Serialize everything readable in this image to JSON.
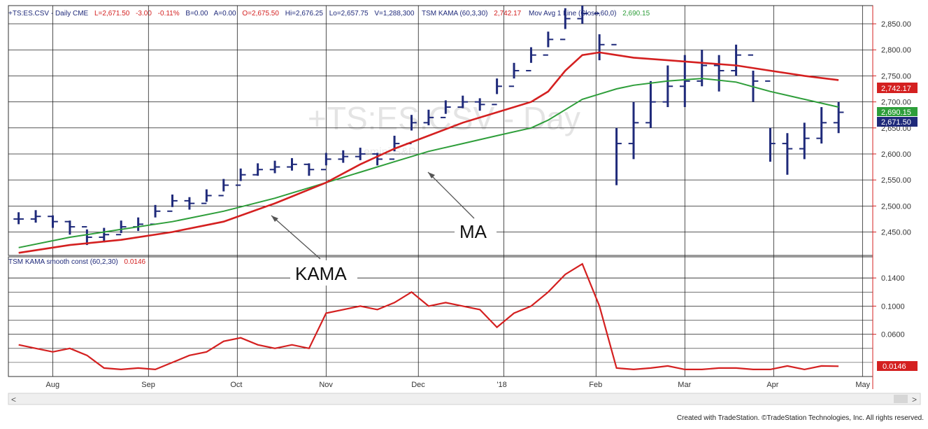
{
  "header": {
    "symbol": "+TS:ES.CSV - Daily  CME",
    "last": "L=2,671.50",
    "change": "-3.00",
    "change_pct": "-0.11%",
    "bid": "B=0.00",
    "ask": "A=0.00",
    "open": "O=2,675.50",
    "high": "Hi=2,676.25",
    "low": "Lo=2,657.75",
    "volume": "V=1,288,300",
    "kama_name": "TSM KAMA (60,3,30)",
    "kama_value": "2,742.17",
    "ma_name": "Mov Avg 1 Line (Close,60,0)",
    "ma_value": "2,690.15"
  },
  "lower_header": {
    "name": "TSM KAMA smooth const (60,2,30)",
    "value": "0.0146"
  },
  "watermark": {
    "line1": "+TS:ES.CSV - Day",
    "line2": "emini S&P"
  },
  "annotations": {
    "ma": "MA",
    "kama": "KAMA"
  },
  "price_tags": {
    "kama": "2,742.17",
    "ma": "2,690.15",
    "last": "2,671.50",
    "sc": "0.0146"
  },
  "footer": {
    "credit": "Created with TradeStation. ©TradeStation Technologies, Inc. All rights reserved."
  },
  "scrollbar": {
    "left": "<",
    "right": ">"
  },
  "colors": {
    "price": "#1f2a7a",
    "kama": "#d42020",
    "ma": "#2e9e3a",
    "grid": "#222222",
    "tag_kama": "#d42020",
    "tag_ma": "#2e9e3a",
    "tag_last": "#1f2a7a"
  },
  "chart_data": {
    "type": "line",
    "upper": {
      "y_ticks": [
        "2,850.00",
        "2,800.00",
        "2,750.00",
        "2,700.00",
        "2,650.00",
        "2,600.00",
        "2,550.00",
        "2,500.00",
        "2,450.00"
      ],
      "y_tick_values": [
        2850,
        2800,
        2750,
        2700,
        2650,
        2600,
        2550,
        2500,
        2450
      ],
      "ylim": [
        2405,
        2885
      ],
      "series": [
        {
          "name": "+TS:ES.CSV - Daily",
          "kind": "ohlc",
          "x": [
            0,
            5,
            10,
            15,
            20,
            25,
            30,
            35,
            40,
            45,
            50,
            55,
            60,
            65,
            70,
            75,
            80,
            85,
            90,
            95,
            100,
            105,
            110,
            115,
            120,
            125,
            130,
            135,
            140,
            145,
            150,
            155,
            160,
            165,
            170,
            175,
            180,
            185,
            190,
            195,
            200,
            205,
            210,
            215,
            220,
            225,
            230,
            235,
            240
          ],
          "close": [
            2475,
            2480,
            2470,
            2460,
            2440,
            2445,
            2460,
            2465,
            2490,
            2510,
            2505,
            2520,
            2540,
            2560,
            2570,
            2575,
            2580,
            2570,
            2590,
            2595,
            2600,
            2590,
            2620,
            2660,
            2670,
            2690,
            2700,
            2695,
            2730,
            2760,
            2790,
            2820,
            2860,
            2870,
            2810,
            2620,
            2660,
            2700,
            2730,
            2740,
            2770,
            2760,
            2790,
            2740,
            2620,
            2610,
            2630,
            2660,
            2680
          ],
          "high": [
            2488,
            2492,
            2482,
            2472,
            2455,
            2458,
            2472,
            2478,
            2502,
            2522,
            2517,
            2532,
            2552,
            2572,
            2582,
            2587,
            2592,
            2582,
            2602,
            2607,
            2612,
            2602,
            2635,
            2675,
            2685,
            2703,
            2712,
            2707,
            2745,
            2775,
            2805,
            2835,
            2880,
            2885,
            2830,
            2650,
            2700,
            2740,
            2770,
            2790,
            2800,
            2790,
            2810,
            2760,
            2650,
            2640,
            2660,
            2690,
            2700
          ],
          "low": [
            2465,
            2468,
            2458,
            2445,
            2425,
            2430,
            2448,
            2452,
            2478,
            2498,
            2493,
            2508,
            2528,
            2548,
            2558,
            2563,
            2568,
            2558,
            2578,
            2583,
            2588,
            2578,
            2605,
            2645,
            2655,
            2677,
            2688,
            2683,
            2715,
            2745,
            2775,
            2805,
            2840,
            2850,
            2780,
            2540,
            2590,
            2650,
            2690,
            2690,
            2730,
            2720,
            2750,
            2700,
            2585,
            2560,
            2590,
            2620,
            2640
          ]
        },
        {
          "name": "TSM KAMA (60,3,30)",
          "x": [
            0,
            15,
            30,
            45,
            60,
            75,
            90,
            100,
            110,
            120,
            130,
            140,
            150,
            155,
            160,
            165,
            170,
            175,
            180,
            190,
            200,
            210,
            220,
            230,
            240
          ],
          "values": [
            2410,
            2425,
            2435,
            2450,
            2470,
            2505,
            2545,
            2580,
            2610,
            2635,
            2660,
            2680,
            2700,
            2720,
            2760,
            2790,
            2795,
            2790,
            2785,
            2780,
            2775,
            2770,
            2760,
            2750,
            2742
          ]
        },
        {
          "name": "Mov Avg 1 Line (Close,60,0)",
          "x": [
            0,
            15,
            30,
            45,
            60,
            75,
            90,
            100,
            110,
            120,
            130,
            140,
            150,
            155,
            160,
            165,
            170,
            175,
            180,
            190,
            200,
            210,
            220,
            230,
            240
          ],
          "values": [
            2420,
            2440,
            2455,
            2470,
            2490,
            2515,
            2545,
            2565,
            2585,
            2605,
            2620,
            2635,
            2650,
            2665,
            2685,
            2705,
            2715,
            2725,
            2732,
            2740,
            2745,
            2738,
            2720,
            2705,
            2690
          ]
        }
      ]
    },
    "lower": {
      "y_ticks": [
        "0.1400",
        "0.1000",
        "0.0600"
      ],
      "y_tick_values": [
        0.14,
        0.1,
        0.06
      ],
      "ylim": [
        0.0,
        0.17
      ],
      "series": [
        {
          "name": "TSM KAMA smooth const (60,2,30)",
          "x": [
            0,
            5,
            10,
            15,
            20,
            25,
            30,
            35,
            40,
            45,
            50,
            55,
            60,
            65,
            70,
            75,
            80,
            85,
            90,
            95,
            100,
            105,
            110,
            115,
            120,
            125,
            130,
            135,
            140,
            145,
            150,
            155,
            160,
            165,
            170,
            175,
            180,
            185,
            190,
            195,
            200,
            205,
            210,
            215,
            220,
            225,
            230,
            235,
            240
          ],
          "values": [
            0.045,
            0.04,
            0.035,
            0.04,
            0.03,
            0.012,
            0.01,
            0.012,
            0.01,
            0.02,
            0.03,
            0.035,
            0.05,
            0.055,
            0.045,
            0.04,
            0.045,
            0.04,
            0.09,
            0.095,
            0.1,
            0.095,
            0.105,
            0.12,
            0.1,
            0.105,
            0.1,
            0.095,
            0.07,
            0.09,
            0.1,
            0.12,
            0.145,
            0.16,
            0.1,
            0.012,
            0.01,
            0.012,
            0.015,
            0.01,
            0.01,
            0.012,
            0.012,
            0.01,
            0.01,
            0.015,
            0.01,
            0.015,
            0.0146
          ]
        }
      ]
    },
    "x_ticks": [
      "Aug",
      "Sep",
      "Oct",
      "Nov",
      "Dec",
      "'18",
      "Feb",
      "Mar",
      "Apr",
      "May"
    ],
    "x_tick_values": [
      10,
      38,
      64,
      90,
      117,
      142,
      169,
      195,
      221,
      247
    ],
    "xlim": [
      -3,
      250
    ],
    "grid": true
  }
}
